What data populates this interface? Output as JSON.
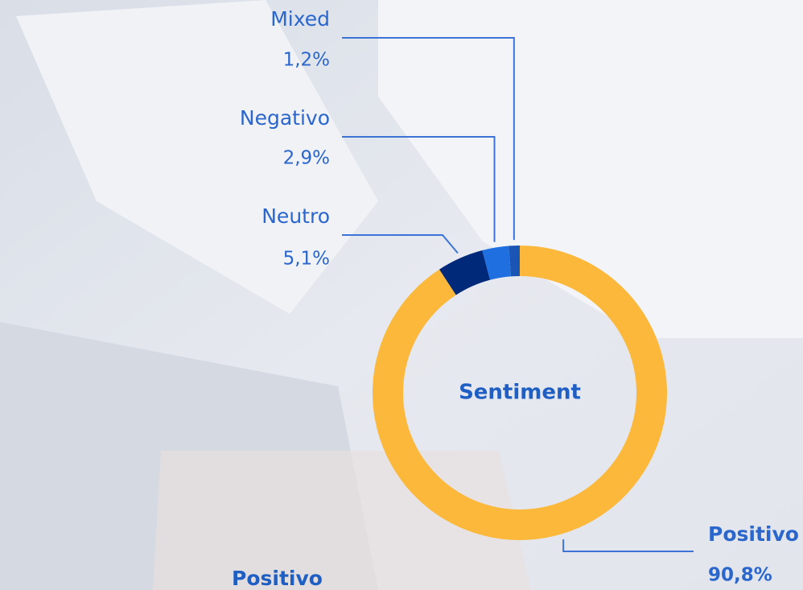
{
  "chart_data": {
    "type": "pie",
    "donut": true,
    "center_label": "Sentiment",
    "categories": [
      "Positivo",
      "Neutro",
      "Negativo",
      "Mixed"
    ],
    "values": [
      90.8,
      5.1,
      2.9,
      1.2
    ],
    "value_labels": [
      "90,8%",
      "5,1%",
      "2,9%",
      "1,2%"
    ],
    "colors": [
      "#fbb83a",
      "#00297a",
      "#1f6fe0",
      "#1a55b5"
    ],
    "annotations": [
      "Positivo"
    ]
  }
}
